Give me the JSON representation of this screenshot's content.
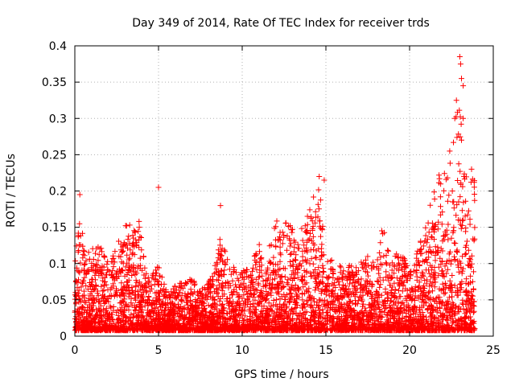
{
  "chart_data": {
    "type": "scatter",
    "title": "Day 349 of 2014, Rate Of TEC Index for receiver trds",
    "xlabel": "GPS time / hours",
    "ylabel": "ROTI / TECUs",
    "xlim": [
      0,
      25
    ],
    "ylim": [
      0,
      0.4
    ],
    "xticks": [
      0,
      5,
      10,
      15,
      20,
      25
    ],
    "yticks": [
      0,
      0.05,
      0.1,
      0.15,
      0.2,
      0.25,
      0.3,
      0.35,
      0.4
    ],
    "grid": true,
    "legend": "none",
    "marker": "+",
    "color": "#ff0000",
    "density_profile": [
      {
        "x": 0.0,
        "y": 0.1
      },
      {
        "x": 0.3,
        "y": 0.19
      },
      {
        "x": 0.6,
        "y": 0.11
      },
      {
        "x": 1.0,
        "y": 0.12
      },
      {
        "x": 1.6,
        "y": 0.13
      },
      {
        "x": 2.0,
        "y": 0.1
      },
      {
        "x": 2.6,
        "y": 0.13
      },
      {
        "x": 3.0,
        "y": 0.16
      },
      {
        "x": 3.5,
        "y": 0.15
      },
      {
        "x": 3.9,
        "y": 0.16
      },
      {
        "x": 4.3,
        "y": 0.08
      },
      {
        "x": 5.0,
        "y": 0.1
      },
      {
        "x": 5.5,
        "y": 0.06
      },
      {
        "x": 6.0,
        "y": 0.07
      },
      {
        "x": 6.8,
        "y": 0.08
      },
      {
        "x": 7.5,
        "y": 0.07
      },
      {
        "x": 8.2,
        "y": 0.08
      },
      {
        "x": 8.7,
        "y": 0.14
      },
      {
        "x": 9.2,
        "y": 0.1
      },
      {
        "x": 9.8,
        "y": 0.09
      },
      {
        "x": 10.5,
        "y": 0.1
      },
      {
        "x": 11.0,
        "y": 0.13
      },
      {
        "x": 11.5,
        "y": 0.09
      },
      {
        "x": 11.8,
        "y": 0.18
      },
      {
        "x": 12.2,
        "y": 0.15
      },
      {
        "x": 12.8,
        "y": 0.16
      },
      {
        "x": 13.3,
        "y": 0.13
      },
      {
        "x": 13.8,
        "y": 0.17
      },
      {
        "x": 14.2,
        "y": 0.19
      },
      {
        "x": 14.6,
        "y": 0.21
      },
      {
        "x": 15.0,
        "y": 0.12
      },
      {
        "x": 15.5,
        "y": 0.1
      },
      {
        "x": 16.2,
        "y": 0.1
      },
      {
        "x": 16.8,
        "y": 0.1
      },
      {
        "x": 17.5,
        "y": 0.11
      },
      {
        "x": 18.0,
        "y": 0.1
      },
      {
        "x": 18.4,
        "y": 0.16
      },
      {
        "x": 19.0,
        "y": 0.11
      },
      {
        "x": 19.5,
        "y": 0.12
      },
      {
        "x": 20.0,
        "y": 0.09
      },
      {
        "x": 20.5,
        "y": 0.12
      },
      {
        "x": 21.0,
        "y": 0.16
      },
      {
        "x": 21.5,
        "y": 0.22
      },
      {
        "x": 22.0,
        "y": 0.23
      },
      {
        "x": 22.5,
        "y": 0.24
      },
      {
        "x": 23.0,
        "y": 0.37
      },
      {
        "x": 23.3,
        "y": 0.22
      },
      {
        "x": 23.8,
        "y": 0.22
      }
    ],
    "outliers": [
      {
        "x": 0.3,
        "y": 0.195
      },
      {
        "x": 5.0,
        "y": 0.205
      },
      {
        "x": 8.7,
        "y": 0.18
      },
      {
        "x": 14.6,
        "y": 0.22
      },
      {
        "x": 14.9,
        "y": 0.215
      },
      {
        "x": 22.4,
        "y": 0.255
      },
      {
        "x": 22.7,
        "y": 0.3
      },
      {
        "x": 22.8,
        "y": 0.325
      },
      {
        "x": 23.0,
        "y": 0.385
      },
      {
        "x": 23.05,
        "y": 0.375
      },
      {
        "x": 23.1,
        "y": 0.355
      },
      {
        "x": 23.2,
        "y": 0.345
      },
      {
        "x": 23.1,
        "y": 0.27
      },
      {
        "x": 23.2,
        "y": 0.3
      },
      {
        "x": 23.7,
        "y": 0.23
      }
    ],
    "x_extent": [
      0,
      23.9
    ]
  }
}
